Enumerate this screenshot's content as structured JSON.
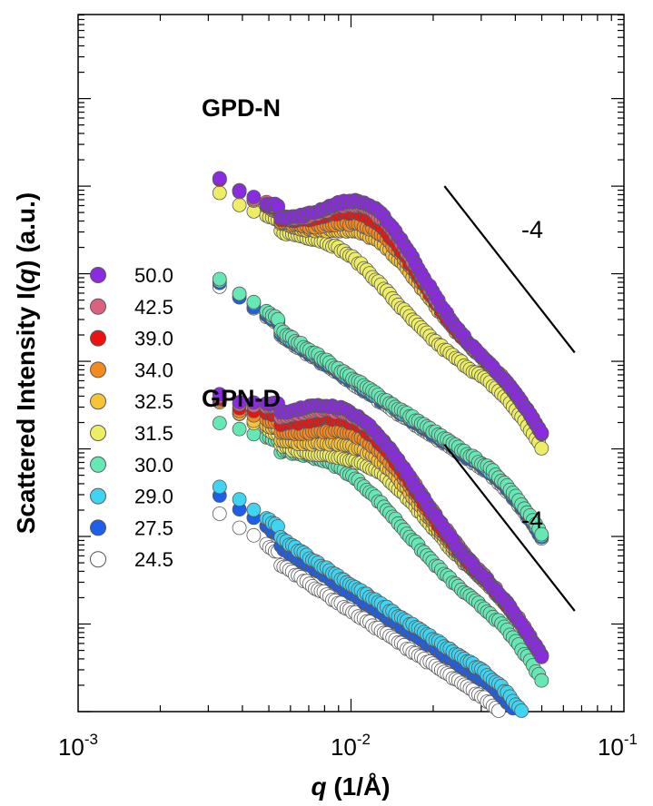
{
  "chart_data": {
    "type": "scatter",
    "x_scale": "log",
    "y_scale": "log",
    "xlim": [
      0.001,
      0.1
    ],
    "xticks": [
      {
        "base": "10",
        "exp": "-3"
      },
      {
        "base": "10",
        "exp": "-2"
      },
      {
        "base": "10",
        "exp": "-1"
      }
    ],
    "xlabel": {
      "var": "q",
      "unit": " (1/Å)"
    },
    "ylabel": {
      "pre": "Scattered Intensity I(",
      "var": "q",
      "post": ") (a.u.)"
    },
    "y_tick_labels": "none",
    "panels": [
      {
        "label": "GPD-N",
        "slope_label": "-4"
      },
      {
        "label": "GPN-D",
        "slope_label": "-4"
      }
    ],
    "legend": {
      "placement": "left",
      "entries": [
        {
          "label": "50.0",
          "color": "#8a2be2"
        },
        {
          "label": "42.5",
          "color": "#d9637f"
        },
        {
          "label": "39.0",
          "color": "#ee1111"
        },
        {
          "label": "34.0",
          "color": "#f58a1f"
        },
        {
          "label": "32.5",
          "color": "#f7c337"
        },
        {
          "label": "31.5",
          "color": "#eeee66"
        },
        {
          "label": "30.0",
          "color": "#66e8b5"
        },
        {
          "label": "29.0",
          "color": "#3fd4f2"
        },
        {
          "label": "27.5",
          "color": "#1f5ee8"
        },
        {
          "label": "24.5",
          "color": "#ffffff"
        }
      ]
    },
    "curve_params": {
      "q_range": [
        0.0033,
        0.05
      ],
      "note": "each curve = power-law background + correlation peak (Gaussian in log q); values in log10 intensity (a.u., arbitrary offset)",
      "panels": [
        {
          "series": [
            {
              "T": "50.0",
              "base0": -2.03,
              "slope": -2.05,
              "peak_amp": 0.95,
              "peak_q": 0.012,
              "peak_w": 0.25
            },
            {
              "T": "42.5",
              "base0": -2.03,
              "slope": -2.05,
              "peak_amp": 0.9,
              "peak_q": 0.012,
              "peak_w": 0.25
            },
            {
              "T": "39.0",
              "base0": -2.03,
              "slope": -2.05,
              "peak_amp": 0.8,
              "peak_q": 0.012,
              "peak_w": 0.25
            },
            {
              "T": "34.0",
              "base0": -2.03,
              "slope": -2.05,
              "peak_amp": 0.7,
              "peak_q": 0.0125,
              "peak_w": 0.25
            },
            {
              "T": "32.5",
              "base0": -2.03,
              "slope": -2.05,
              "peak_amp": 0.6,
              "peak_q": 0.0125,
              "peak_w": 0.25
            },
            {
              "T": "31.5",
              "base0": -2.2,
              "slope": -2.05,
              "peak_amp": 0.4,
              "peak_q": 0.0095,
              "peak_w": 0.24
            },
            {
              "T": "30.0",
              "base0": -3.18,
              "slope": -2.05,
              "peak_amp": 0.0,
              "peak_q": 0.01,
              "peak_w": 0.25
            },
            {
              "T": "29.0",
              "base0": -3.2,
              "slope": -2.05,
              "peak_amp": 0.0,
              "peak_q": 0.01,
              "peak_w": 0.25
            },
            {
              "T": "27.5",
              "base0": -3.22,
              "slope": -2.05,
              "peak_amp": 0.0,
              "peak_q": 0.01,
              "peak_w": 0.25
            },
            {
              "T": "24.5",
              "base0": -3.24,
              "slope": -2.05,
              "peak_amp": 0.0,
              "peak_q": 0.01,
              "peak_w": 0.25
            }
          ]
        },
        {
          "series": [
            {
              "T": "50.0",
              "base0": -4.58,
              "slope": -2.05,
              "peak_amp": 1.0,
              "peak_q": 0.0105,
              "peak_w": 0.32
            },
            {
              "T": "42.5",
              "base0": -4.58,
              "slope": -2.05,
              "peak_amp": 0.97,
              "peak_q": 0.0108,
              "peak_w": 0.32
            },
            {
              "T": "39.0",
              "base0": -4.58,
              "slope": -2.05,
              "peak_amp": 0.9,
              "peak_q": 0.011,
              "peak_w": 0.3
            },
            {
              "T": "34.0",
              "base0": -4.58,
              "slope": -2.05,
              "peak_amp": 0.78,
              "peak_q": 0.0115,
              "peak_w": 0.29
            },
            {
              "T": "32.5",
              "base0": -4.58,
              "slope": -2.05,
              "peak_amp": 0.66,
              "peak_q": 0.012,
              "peak_w": 0.28
            },
            {
              "T": "31.5",
              "base0": -4.58,
              "slope": -2.05,
              "peak_amp": 0.52,
              "peak_q": 0.0125,
              "peak_w": 0.27
            },
            {
              "T": "30.0",
              "base0": -4.85,
              "slope": -2.05,
              "peak_amp": 0.55,
              "peak_q": 0.0095,
              "peak_w": 0.3
            },
            {
              "T": "29.0",
              "base0": -5.55,
              "slope": -2.05,
              "peak_amp": 0.0,
              "peak_q": 0.01,
              "peak_w": 0.25
            },
            {
              "T": "27.5",
              "base0": -5.65,
              "slope": -2.05,
              "peak_amp": 0.0,
              "peak_q": 0.01,
              "peak_w": 0.25
            },
            {
              "T": "24.5",
              "base0": -5.85,
              "slope": -2.05,
              "peak_amp": 0.0,
              "peak_q": 0.01,
              "peak_w": 0.25
            }
          ]
        }
      ]
    },
    "reference_lines": [
      {
        "q": [
          0.022,
          0.066
        ],
        "log_I": [
          -1.0,
          -2.9
        ]
      },
      {
        "q": [
          0.022,
          0.066
        ],
        "log_I": [
          -3.95,
          -5.85
        ]
      }
    ]
  }
}
